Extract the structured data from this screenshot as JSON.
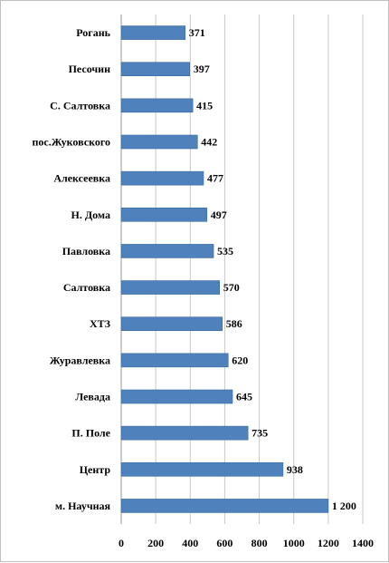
{
  "chart_data": {
    "type": "bar",
    "orientation": "horizontal",
    "categories": [
      "Рогань",
      "Песочин",
      "С. Салтовка",
      "пос.Жуковского",
      "Алексеевка",
      "Н. Дома",
      "Павловка",
      "Салтовка",
      "ХТЗ",
      "Журавлевка",
      "Левада",
      "П. Поле",
      "Центр",
      "м. Научная"
    ],
    "values": [
      371,
      397,
      415,
      442,
      477,
      497,
      535,
      570,
      586,
      620,
      645,
      735,
      938,
      1200
    ],
    "value_labels": [
      "371",
      "397",
      "415",
      "442",
      "477",
      "497",
      "535",
      "570",
      "586",
      "620",
      "645",
      "735",
      "938",
      "1 200"
    ],
    "xlim": [
      0,
      1400
    ],
    "x_ticks": [
      "0",
      "200",
      "400",
      "600",
      "800",
      "1000",
      "1200",
      "1400"
    ],
    "grid": "vertical",
    "legend": "none",
    "bar_color": "#4f81bd",
    "bar_edge_color": "#3a6a9f",
    "grid_color": "#c8c8c8"
  }
}
